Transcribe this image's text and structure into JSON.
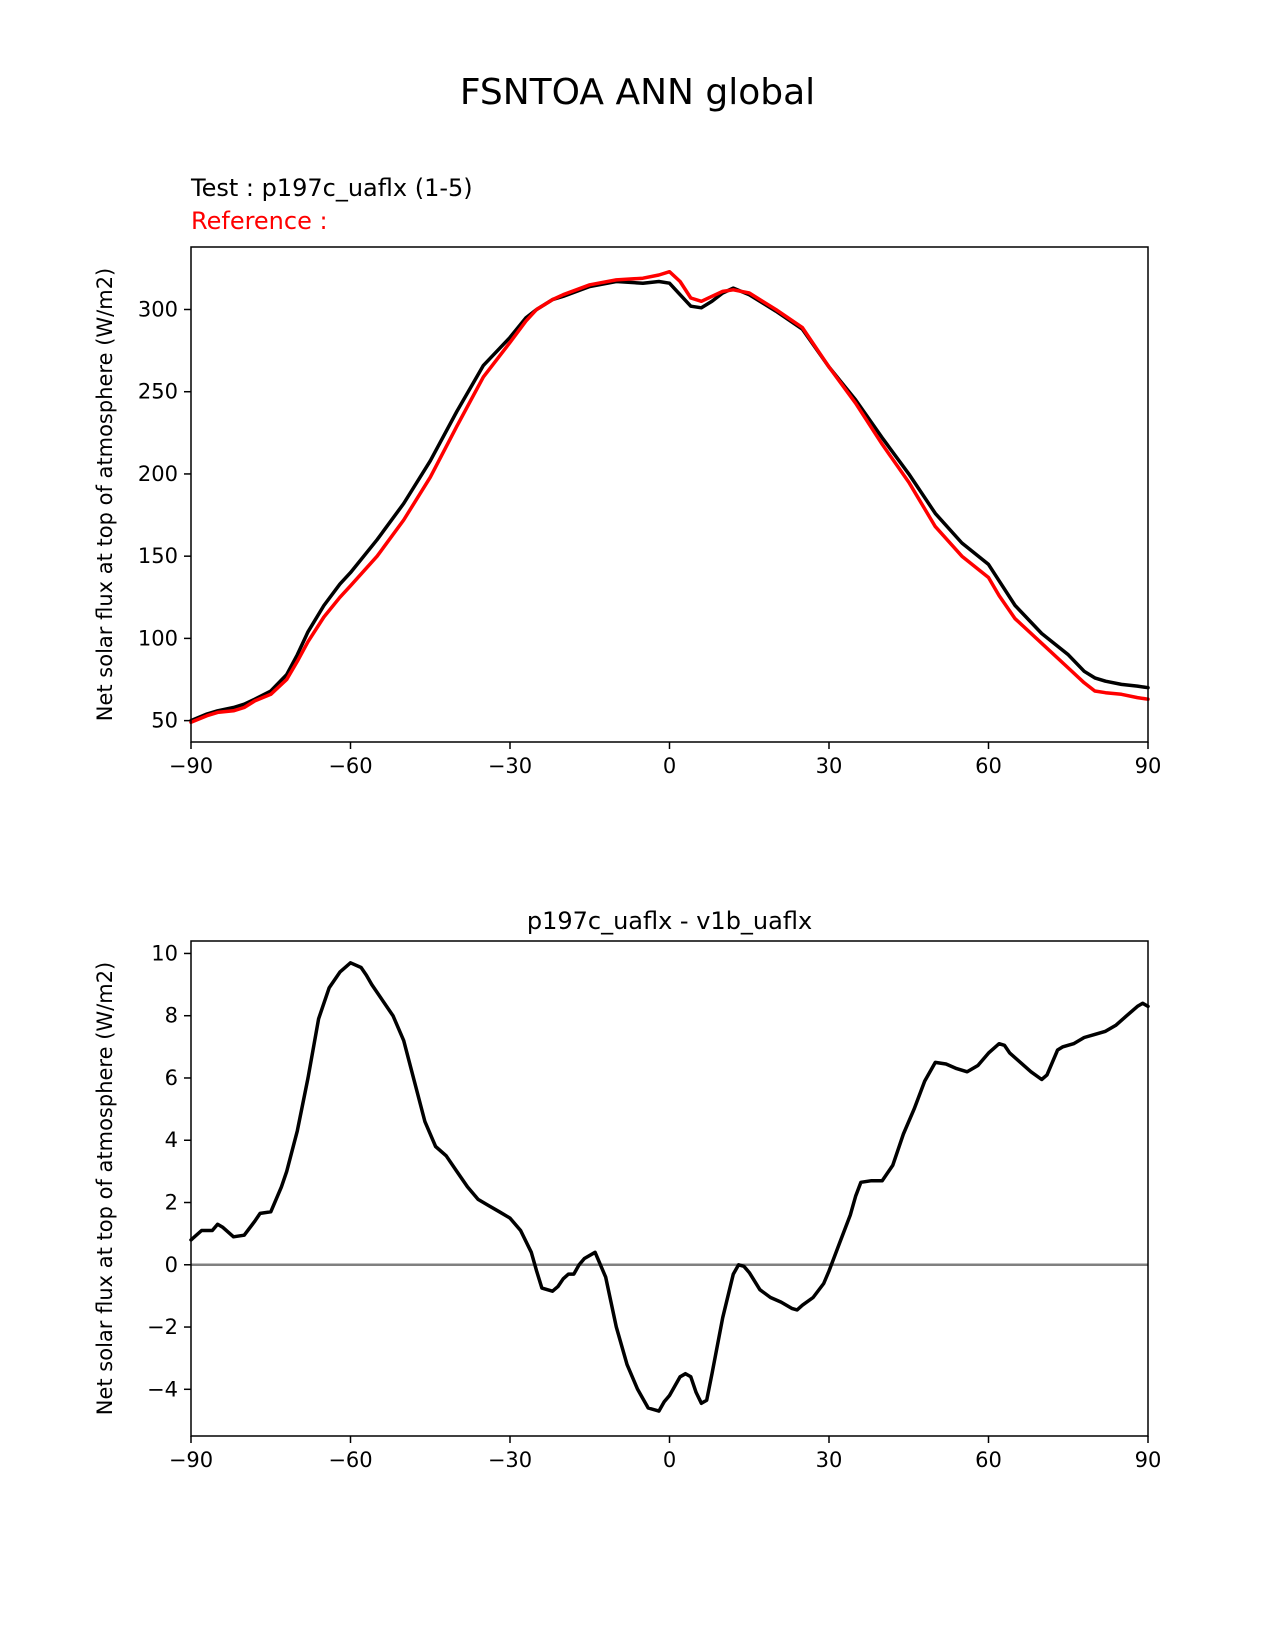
{
  "suptitle": "FSNTOA ANN global",
  "test_label": "Test : p197c_uaflx (1-5)",
  "reference_label": "Reference :",
  "chart_data": [
    {
      "type": "line",
      "title": "",
      "xlabel": "",
      "ylabel": "Net solar flux at top of atmosphere (W/m2)",
      "xlim": [
        -90,
        90
      ],
      "ylim": [
        37,
        338
      ],
      "xticks": [
        -90,
        -60,
        -30,
        0,
        30,
        60,
        90
      ],
      "xtick_labels": [
        "−90",
        "−60",
        "−30",
        "0",
        "30",
        "60",
        "90"
      ],
      "yticks": [
        50,
        100,
        150,
        200,
        250,
        300
      ],
      "ytick_labels": [
        "50",
        "100",
        "150",
        "200",
        "250",
        "300"
      ],
      "grid": false,
      "series": [
        {
          "color": "#000000",
          "x": [
            -90,
            -87,
            -85,
            -82,
            -80,
            -78,
            -75,
            -72,
            -70,
            -68,
            -65,
            -62,
            -60,
            -55,
            -50,
            -45,
            -40,
            -35,
            -30,
            -27,
            -25,
            -22,
            -20,
            -15,
            -10,
            -5,
            -2,
            0,
            2,
            4,
            6,
            8,
            10,
            12,
            15,
            20,
            25,
            30,
            35,
            40,
            45,
            50,
            55,
            60,
            62,
            65,
            70,
            75,
            78,
            80,
            82,
            85,
            88,
            90
          ],
          "y": [
            50,
            54,
            56,
            58,
            60,
            63,
            68,
            78,
            90,
            104,
            120,
            133,
            140,
            160,
            182,
            208,
            238,
            266,
            283,
            295,
            300,
            306,
            308,
            314,
            317,
            316,
            317,
            316,
            309,
            302,
            301,
            305,
            310,
            313,
            309,
            299,
            288,
            265,
            245,
            222,
            200,
            176,
            158,
            145,
            135,
            120,
            103,
            90,
            80,
            76,
            74,
            72,
            71,
            70
          ]
        },
        {
          "color": "#ff0000",
          "x": [
            -90,
            -87,
            -85,
            -82,
            -80,
            -78,
            -75,
            -72,
            -70,
            -68,
            -65,
            -62,
            -60,
            -55,
            -50,
            -45,
            -40,
            -35,
            -30,
            -27,
            -25,
            -22,
            -20,
            -15,
            -10,
            -5,
            -2,
            0,
            2,
            4,
            6,
            8,
            10,
            12,
            15,
            20,
            25,
            30,
            35,
            40,
            45,
            50,
            55,
            60,
            62,
            65,
            70,
            75,
            78,
            80,
            82,
            85,
            88,
            90
          ],
          "y": [
            49,
            53,
            55,
            56,
            58,
            62,
            66,
            75,
            86,
            98,
            113,
            125,
            132,
            150,
            172,
            198,
            229,
            259,
            280,
            293,
            300,
            306,
            309,
            315,
            318,
            319,
            321,
            323,
            317,
            307,
            305,
            308,
            311,
            312,
            310,
            300,
            289,
            265,
            243,
            218,
            195,
            168,
            150,
            137,
            126,
            112,
            97,
            82,
            73,
            68,
            67,
            66,
            64,
            63
          ]
        }
      ]
    },
    {
      "type": "line",
      "title": "p197c_uaflx - v1b_uaflx",
      "xlabel": "",
      "ylabel": "Net solar flux at top of atmosphere (W/m2)",
      "xlim": [
        -90,
        90
      ],
      "ylim": [
        -5.5,
        10.4
      ],
      "xticks": [
        -90,
        -60,
        -30,
        0,
        30,
        60,
        90
      ],
      "xtick_labels": [
        "−90",
        "−60",
        "−30",
        "0",
        "30",
        "60",
        "90"
      ],
      "yticks": [
        -4,
        -2,
        0,
        2,
        4,
        6,
        8,
        10
      ],
      "ytick_labels": [
        "−4",
        "−2",
        "0",
        "2",
        "4",
        "6",
        "8",
        "10"
      ],
      "grid": false,
      "zero_line": {
        "y": 0,
        "color": "#808080"
      },
      "series": [
        {
          "color": "#000000",
          "x": [
            -90,
            -88,
            -86,
            -85,
            -84,
            -82,
            -80,
            -78,
            -77,
            -75,
            -73,
            -72,
            -70,
            -68,
            -66,
            -64,
            -62,
            -60,
            -58,
            -57,
            -56,
            -54,
            -52,
            -50,
            -48,
            -46,
            -44,
            -42,
            -40,
            -38,
            -36,
            -34,
            -32,
            -30,
            -28,
            -26,
            -25,
            -24,
            -22,
            -21,
            -20,
            -19,
            -18,
            -17,
            -16,
            -14,
            -12,
            -11,
            -10,
            -8,
            -6,
            -4,
            -2,
            -1,
            0,
            2,
            3,
            4,
            5,
            6,
            7,
            8,
            10,
            12,
            13,
            14,
            15,
            17,
            19,
            21,
            23,
            24,
            25,
            27,
            29,
            30,
            32,
            34,
            35,
            36,
            38,
            40,
            42,
            44,
            46,
            48,
            50,
            52,
            54,
            56,
            58,
            60,
            62,
            63,
            64,
            66,
            68,
            70,
            71,
            72,
            73,
            74,
            76,
            78,
            80,
            82,
            84,
            86,
            88,
            89,
            90
          ],
          "y": [
            0.8,
            1.1,
            1.1,
            1.3,
            1.2,
            0.9,
            0.95,
            1.4,
            1.65,
            1.7,
            2.5,
            3.0,
            4.3,
            6.0,
            7.9,
            8.9,
            9.4,
            9.7,
            9.55,
            9.3,
            9.0,
            8.5,
            8.0,
            7.2,
            5.9,
            4.6,
            3.8,
            3.5,
            3.0,
            2.5,
            2.1,
            1.9,
            1.7,
            1.5,
            1.1,
            0.4,
            -0.2,
            -0.75,
            -0.85,
            -0.7,
            -0.45,
            -0.3,
            -0.3,
            0.0,
            0.2,
            0.4,
            -0.4,
            -1.2,
            -2.0,
            -3.2,
            -4.0,
            -4.6,
            -4.7,
            -4.4,
            -4.2,
            -3.6,
            -3.5,
            -3.6,
            -4.1,
            -4.45,
            -4.35,
            -3.5,
            -1.7,
            -0.3,
            0.0,
            -0.05,
            -0.25,
            -0.8,
            -1.05,
            -1.2,
            -1.4,
            -1.45,
            -1.3,
            -1.05,
            -0.6,
            -0.2,
            0.7,
            1.6,
            2.2,
            2.65,
            2.7,
            2.7,
            3.2,
            4.2,
            5.0,
            5.9,
            6.5,
            6.45,
            6.3,
            6.2,
            6.4,
            6.8,
            7.1,
            7.05,
            6.8,
            6.5,
            6.2,
            5.95,
            6.1,
            6.5,
            6.9,
            7.0,
            7.1,
            7.3,
            7.4,
            7.5,
            7.7,
            8.0,
            8.3,
            8.4,
            8.3
          ]
        }
      ]
    }
  ]
}
